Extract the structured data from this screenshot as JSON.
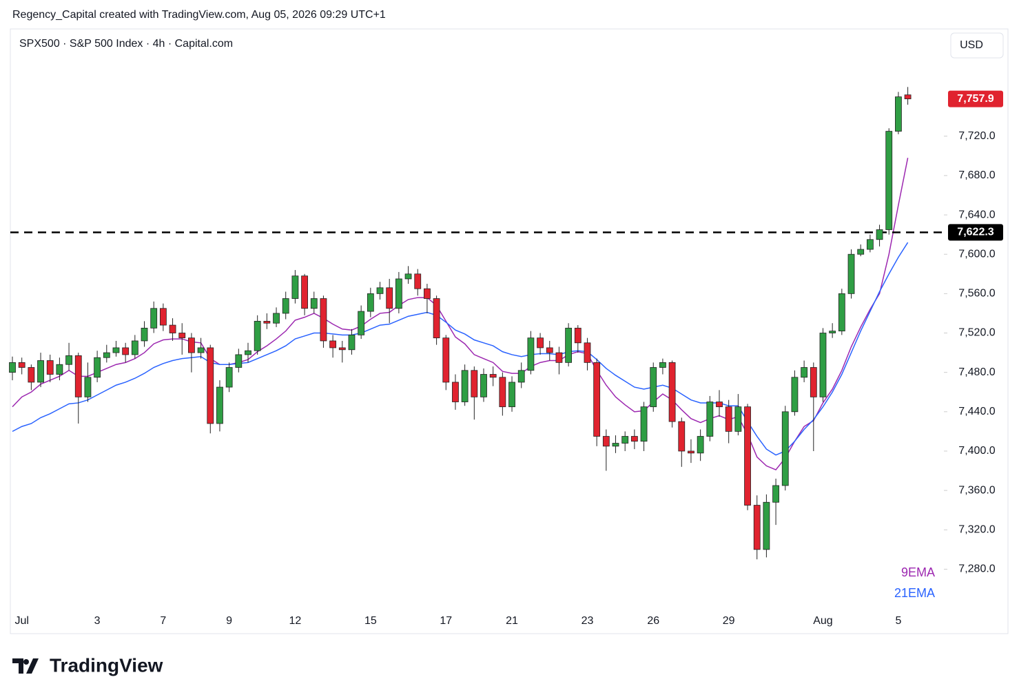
{
  "chart_data": {
    "type": "candlestick",
    "attribution": "Regency_Capital created with TradingView.com, Aug 05, 2026 09:29 UTC+1",
    "title": "SPX500 · S&P 500 Index · 4h · Capital.com",
    "currency": "USD",
    "brand": "TradingView",
    "last_price_label": "7,757.9",
    "hline": {
      "value": 7622.3,
      "label": "7,622.3"
    },
    "ylim": [
      7239,
      7829
    ],
    "yticks": [
      {
        "value": 7280,
        "label": "7,280.0"
      },
      {
        "value": 7320,
        "label": "7,320.0"
      },
      {
        "value": 7360,
        "label": "7,360.0"
      },
      {
        "value": 7400,
        "label": "7,400.0"
      },
      {
        "value": 7440,
        "label": "7,440.0"
      },
      {
        "value": 7480,
        "label": "7,480.0"
      },
      {
        "value": 7520,
        "label": "7,520.0"
      },
      {
        "value": 7560,
        "label": "7,560.0"
      },
      {
        "value": 7600,
        "label": "7,600.0"
      },
      {
        "value": 7640,
        "label": "7,640.0"
      },
      {
        "value": 7680,
        "label": "7,680.0"
      },
      {
        "value": 7720,
        "label": "7,720.0"
      }
    ],
    "categories": [
      null,
      "Jul",
      null,
      null,
      null,
      null,
      null,
      null,
      null,
      "3",
      null,
      null,
      null,
      null,
      null,
      null,
      "7",
      null,
      null,
      null,
      null,
      null,
      null,
      "9",
      null,
      null,
      null,
      null,
      null,
      null,
      "12",
      null,
      null,
      null,
      null,
      null,
      null,
      null,
      "15",
      null,
      null,
      null,
      null,
      null,
      null,
      null,
      "17",
      null,
      null,
      null,
      null,
      null,
      null,
      "21",
      null,
      null,
      null,
      null,
      null,
      null,
      null,
      "23",
      null,
      null,
      null,
      null,
      null,
      null,
      "26",
      null,
      null,
      null,
      null,
      null,
      null,
      null,
      "29",
      null,
      null,
      null,
      null,
      null,
      null,
      null,
      null,
      null,
      "Aug",
      null,
      null,
      null,
      null,
      null,
      null,
      null,
      "5",
      null
    ],
    "up_color": "#2f9e44",
    "down_color": "#e0232f",
    "open": [
      7480,
      7490,
      7485,
      7470,
      7492,
      7478,
      7488,
      7497,
      7455,
      7475,
      7495,
      7500,
      7505,
      7498,
      7512,
      7525,
      7545,
      7528,
      7520,
      7515,
      7500,
      7505,
      7428,
      7465,
      7485,
      7498,
      7502,
      7532,
      7530,
      7540,
      7555,
      7578,
      7545,
      7555,
      7512,
      7505,
      7503,
      7518,
      7542,
      7560,
      7566,
      7545,
      7575,
      7580,
      7565,
      7555,
      7515,
      7470,
      7450,
      7482,
      7455,
      7478,
      7475,
      7445,
      7470,
      7482,
      7515,
      7505,
      7500,
      7490,
      7525,
      7510,
      7490,
      7415,
      7405,
      7408,
      7415,
      7410,
      7445,
      7485,
      7490,
      7430,
      7400,
      7398,
      7415,
      7450,
      7445,
      7420,
      7445,
      7345,
      7300,
      7348,
      7365,
      7440,
      7475,
      7485,
      7455,
      7520,
      7522,
      7560,
      7600,
      7605,
      7615,
      7625,
      7725,
      7762
    ],
    "high": [
      7496,
      7495,
      7488,
      7500,
      7498,
      7495,
      7510,
      7500,
      7490,
      7502,
      7508,
      7512,
      7510,
      7518,
      7532,
      7552,
      7550,
      7535,
      7530,
      7520,
      7515,
      7508,
      7472,
      7490,
      7504,
      7510,
      7538,
      7540,
      7546,
      7562,
      7584,
      7580,
      7562,
      7558,
      7518,
      7512,
      7524,
      7548,
      7566,
      7572,
      7575,
      7582,
      7588,
      7585,
      7570,
      7558,
      7518,
      7478,
      7488,
      7486,
      7484,
      7486,
      7480,
      7476,
      7490,
      7522,
      7520,
      7512,
      7506,
      7530,
      7528,
      7515,
      7494,
      7422,
      7416,
      7420,
      7422,
      7450,
      7490,
      7494,
      7492,
      7434,
      7412,
      7422,
      7456,
      7462,
      7452,
      7458,
      7448,
      7355,
      7356,
      7372,
      7446,
      7482,
      7492,
      7490,
      7525,
      7530,
      7565,
      7605,
      7610,
      7620,
      7630,
      7728,
      7765,
      7770
    ],
    "low": [
      7472,
      7478,
      7462,
      7465,
      7470,
      7472,
      7482,
      7428,
      7450,
      7470,
      7490,
      7496,
      7490,
      7494,
      7506,
      7520,
      7522,
      7512,
      7498,
      7480,
      7494,
      7418,
      7420,
      7460,
      7480,
      7490,
      7498,
      7524,
      7526,
      7534,
      7550,
      7538,
      7540,
      7505,
      7495,
      7490,
      7498,
      7514,
      7536,
      7554,
      7530,
      7540,
      7570,
      7558,
      7540,
      7508,
      7462,
      7442,
      7446,
      7432,
      7450,
      7466,
      7436,
      7440,
      7464,
      7478,
      7498,
      7492,
      7478,
      7486,
      7500,
      7482,
      7405,
      7380,
      7398,
      7400,
      7402,
      7400,
      7440,
      7478,
      7424,
      7384,
      7388,
      7390,
      7410,
      7435,
      7408,
      7416,
      7340,
      7290,
      7292,
      7325,
      7360,
      7436,
      7470,
      7400,
      7450,
      7515,
      7518,
      7555,
      7598,
      7602,
      7608,
      7620,
      7722,
      7752
    ],
    "close": [
      7490,
      7485,
      7470,
      7492,
      7478,
      7488,
      7497,
      7455,
      7475,
      7495,
      7500,
      7505,
      7498,
      7512,
      7525,
      7545,
      7528,
      7520,
      7515,
      7500,
      7505,
      7428,
      7465,
      7485,
      7498,
      7502,
      7532,
      7530,
      7540,
      7555,
      7578,
      7545,
      7555,
      7512,
      7505,
      7503,
      7518,
      7542,
      7560,
      7566,
      7545,
      7575,
      7580,
      7565,
      7555,
      7515,
      7470,
      7450,
      7482,
      7455,
      7478,
      7475,
      7445,
      7470,
      7482,
      7515,
      7505,
      7500,
      7490,
      7525,
      7510,
      7490,
      7415,
      7405,
      7408,
      7415,
      7410,
      7445,
      7485,
      7490,
      7430,
      7400,
      7398,
      7415,
      7450,
      7445,
      7420,
      7445,
      7345,
      7300,
      7348,
      7365,
      7440,
      7475,
      7485,
      7455,
      7520,
      7522,
      7560,
      7600,
      7605,
      7615,
      7625,
      7725,
      7760,
      7757.9
    ],
    "series": [
      {
        "name": "9EMA",
        "color": "#9c27b0",
        "values": [
          7445,
          7455,
          7460,
          7468,
          7472,
          7476,
          7482,
          7476,
          7476,
          7480,
          7484,
          7488,
          7490,
          7494,
          7500,
          7509,
          7513,
          7514,
          7514,
          7511,
          7510,
          7494,
          7488,
          7488,
          7490,
          7493,
          7501,
          7507,
          7514,
          7522,
          7533,
          7536,
          7540,
          7535,
          7529,
          7524,
          7523,
          7527,
          7534,
          7540,
          7541,
          7548,
          7554,
          7556,
          7556,
          7548,
          7532,
          7516,
          7509,
          7498,
          7494,
          7490,
          7481,
          7479,
          7479,
          7486,
          7490,
          7492,
          7492,
          7498,
          7501,
          7499,
          7482,
          7467,
          7455,
          7447,
          7440,
          7441,
          7450,
          7458,
          7452,
          7442,
          7433,
          7429,
          7433,
          7436,
          7432,
          7435,
          7417,
          7394,
          7385,
          7381,
          7393,
          7410,
          7425,
          7431,
          7449,
          7463,
          7482,
          7506,
          7526,
          7544,
          7560,
          7600,
          7650,
          7698
        ]
      },
      {
        "name": "21EMA",
        "color": "#2962ff",
        "values": [
          7420,
          7425,
          7428,
          7434,
          7438,
          7443,
          7448,
          7449,
          7452,
          7457,
          7462,
          7467,
          7470,
          7474,
          7479,
          7485,
          7489,
          7492,
          7494,
          7495,
          7496,
          7490,
          7488,
          7488,
          7489,
          7490,
          7494,
          7498,
          7502,
          7507,
          7514,
          7517,
          7520,
          7520,
          7519,
          7518,
          7518,
          7520,
          7524,
          7528,
          7529,
          7533,
          7537,
          7539,
          7541,
          7538,
          7531,
          7523,
          7519,
          7513,
          7510,
          7507,
          7501,
          7498,
          7496,
          7498,
          7499,
          7499,
          7498,
          7501,
          7502,
          7501,
          7493,
          7484,
          7477,
          7471,
          7465,
          7463,
          7465,
          7467,
          7464,
          7458,
          7452,
          7449,
          7449,
          7449,
          7446,
          7446,
          7430,
          7415,
          7402,
          7396,
          7400,
          7410,
          7422,
          7432,
          7445,
          7460,
          7478,
          7500,
          7522,
          7542,
          7562,
          7580,
          7597,
          7612
        ]
      }
    ]
  }
}
